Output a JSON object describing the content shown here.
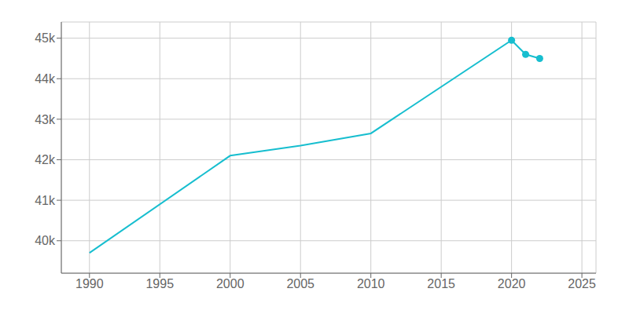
{
  "chart_data": {
    "type": "line",
    "x": [
      1990,
      2000,
      2005,
      2010,
      2020,
      2021,
      2022
    ],
    "series": [
      {
        "type": "line",
        "color": "#17becf",
        "values": [
          39700,
          42100,
          42350,
          42650,
          44950,
          44600,
          44500
        ]
      },
      {
        "type": "scatter",
        "color": "#17becf",
        "marker": "circle",
        "x": [
          2020,
          2021,
          2022
        ],
        "values": [
          44950,
          44600,
          44500
        ]
      }
    ],
    "xlim": [
      1988,
      2026
    ],
    "ylim": [
      39200,
      45400
    ],
    "xticks": [
      1990,
      1995,
      2000,
      2005,
      2010,
      2015,
      2020,
      2025
    ],
    "yticks": [
      {
        "value": 40000,
        "label": "40k"
      },
      {
        "value": 41000,
        "label": "41k"
      },
      {
        "value": 42000,
        "label": "42k"
      },
      {
        "value": 43000,
        "label": "43k"
      },
      {
        "value": 44000,
        "label": "44k"
      },
      {
        "value": 45000,
        "label": "45k"
      }
    ],
    "grid": true
  }
}
